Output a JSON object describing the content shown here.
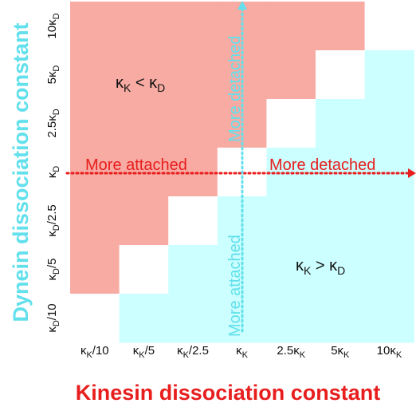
{
  "chart_data": {
    "type": "heatmap",
    "x_axis": {
      "label": "Kinesin dissociation constant",
      "ticks": [
        {
          "base": "κ",
          "sub": "K",
          "suffix": "/10"
        },
        {
          "base": "κ",
          "sub": "K",
          "suffix": "/5"
        },
        {
          "base": "κ",
          "sub": "K",
          "suffix": "/2.5"
        },
        {
          "base": "κ",
          "sub": "K",
          "suffix": ""
        },
        {
          "prefix": "2.5",
          "base": "κ",
          "sub": "K"
        },
        {
          "prefix": "5",
          "base": "κ",
          "sub": "K"
        },
        {
          "prefix": "10",
          "base": "κ",
          "sub": "K"
        }
      ]
    },
    "y_axis": {
      "label": "Dynein dissociation constant",
      "ticks_bottom_to_top": [
        {
          "base": "κ",
          "sub": "D",
          "suffix": "/10"
        },
        {
          "base": "κ",
          "sub": "D",
          "suffix": "/5"
        },
        {
          "base": "κ",
          "sub": "D",
          "suffix": "/2.5"
        },
        {
          "base": "κ",
          "sub": "D",
          "suffix": ""
        },
        {
          "prefix": "2.5",
          "base": "κ",
          "sub": "D"
        },
        {
          "prefix": "5",
          "base": "κ",
          "sub": "D"
        },
        {
          "prefix": "10",
          "base": "κ",
          "sub": "D"
        }
      ]
    },
    "regions": {
      "upper_left": {
        "color": "#f7aba3",
        "label": {
          "a": "κ",
          "a_sub": "K",
          "op": " < ",
          "b": "κ",
          "b_sub": "D"
        }
      },
      "lower_right": {
        "color": "#ccffff",
        "label": {
          "a": "κ",
          "a_sub": "K",
          "op": " > ",
          "b": "κ",
          "b_sub": "D"
        }
      },
      "diagonal_color": "#ffffff"
    },
    "grid_rows_top_to_bottom": [
      [
        "D",
        "D",
        "D",
        "D",
        "D",
        "D",
        "N"
      ],
      [
        "D",
        "D",
        "D",
        "D",
        "D",
        "N",
        "K"
      ],
      [
        "D",
        "D",
        "D",
        "D",
        "N",
        "K",
        "K"
      ],
      [
        "D",
        "D",
        "D",
        "N",
        "K",
        "K",
        "K"
      ],
      [
        "D",
        "D",
        "N",
        "K",
        "K",
        "K",
        "K"
      ],
      [
        "D",
        "N",
        "K",
        "K",
        "K",
        "K",
        "K"
      ],
      [
        "N",
        "K",
        "K",
        "K",
        "K",
        "K",
        "K"
      ]
    ],
    "annotations": {
      "horizontal_left": "More attached",
      "horizontal_right": "More detached",
      "vertical_top": "More detached",
      "vertical_bottom": "More attached",
      "red_color": "#e81d1d",
      "cyan_color": "#62e0ec"
    }
  }
}
